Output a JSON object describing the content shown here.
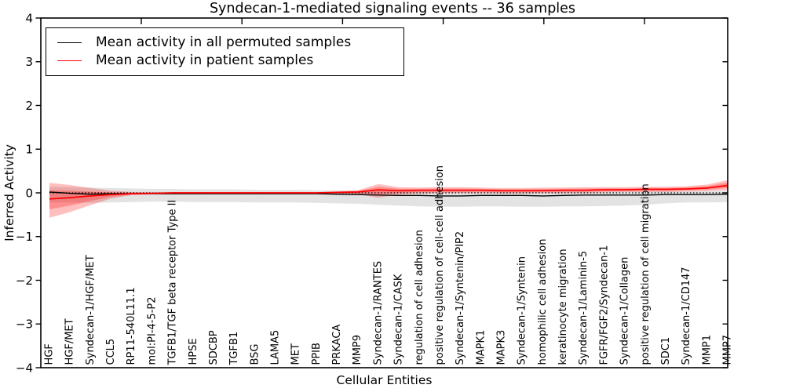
{
  "figure": {
    "window_title": "Syndecan-1-mediated signaling events -- 36 samples"
  },
  "legend": {
    "position": "upper left",
    "entries": [
      {
        "label": "Mean activity in all permuted samples",
        "color": "#000000"
      },
      {
        "label": "Mean activity in patient samples",
        "color": "#ff0000"
      }
    ]
  },
  "colors": {
    "background": "#ffffff",
    "frame": "#000000",
    "permuted_line": "#000000",
    "permuted_band": "#e3e3e3",
    "patient_line": "#ff0000",
    "patient_band": "rgba(255,0,0,0.25)"
  },
  "chart_data": {
    "type": "line",
    "title": "Syndecan-1-mediated signaling events -- 36 samples",
    "xlabel": "Cellular Entities",
    "ylabel": "Inferred Activity",
    "ylim": [
      -4,
      4
    ],
    "yticks": [
      4,
      3,
      2,
      1,
      0,
      -1,
      -2,
      -3,
      -4
    ],
    "grid": false,
    "legend_position": "upper left",
    "zero_reference_line": {
      "value": 0,
      "style": "dotted",
      "color": "#000000"
    },
    "sample_count": 36,
    "categories": [
      "HGF",
      "HGF/MET",
      "Syndecan-1/HGF/MET",
      "CCL5",
      "RP11-540L11.1",
      "mol:PI-4-5-P2",
      "TGFB1/TGF beta receptor Type II",
      "HPSE",
      "SDCBP",
      "TGFB1",
      "BSG",
      "LAMA5",
      "MET",
      "PPIB",
      "PRKACA",
      "MMP9",
      "Syndecan-1/RANTES",
      "Syndecan-1/CASK",
      "regulation of cell adhesion",
      "positive regulation of cell-cell adhesion",
      "Syndecan-1/Syntenin/PIP2",
      "MAPK1",
      "MAPK3",
      "Syndecan-1/Syntenin",
      "homophilic cell adhesion",
      "keratinocyte migration",
      "Syndecan-1/Laminin-5",
      "FGFR/FGF2/Syndecan-1",
      "Syndecan-1/Collagen",
      "positive regulation of cell migration",
      "SDC1",
      "Syndecan-1/CD147",
      "MMP1",
      "MMP7"
    ],
    "series": [
      {
        "name": "Mean activity in all permuted samples",
        "color": "#000000",
        "band_color": "#e3e3e3",
        "values": [
          0.02,
          -0.01,
          -0.03,
          -0.02,
          -0.02,
          -0.02,
          -0.02,
          -0.02,
          -0.02,
          -0.02,
          -0.02,
          -0.02,
          -0.02,
          -0.02,
          -0.03,
          -0.04,
          -0.05,
          -0.06,
          -0.06,
          -0.07,
          -0.07,
          -0.06,
          -0.06,
          -0.06,
          -0.07,
          -0.06,
          -0.05,
          -0.05,
          -0.05,
          -0.05,
          -0.04,
          -0.04,
          -0.04,
          -0.03
        ],
        "band_hi": [
          0.14,
          0.13,
          0.12,
          0.11,
          0.1,
          0.09,
          0.09,
          0.08,
          0.08,
          0.08,
          0.07,
          0.07,
          0.07,
          0.06,
          0.06,
          0.05,
          0.05,
          0.04,
          0.04,
          0.04,
          0.04,
          0.03,
          0.03,
          0.03,
          0.03,
          0.03,
          0.03,
          0.03,
          0.03,
          0.04,
          0.04,
          0.04,
          0.04,
          0.05
        ],
        "band_lo": [
          -0.22,
          -0.22,
          -0.23,
          -0.22,
          -0.21,
          -0.2,
          -0.2,
          -0.21,
          -0.21,
          -0.21,
          -0.22,
          -0.22,
          -0.22,
          -0.23,
          -0.24,
          -0.25,
          -0.27,
          -0.29,
          -0.31,
          -0.32,
          -0.32,
          -0.31,
          -0.31,
          -0.32,
          -0.32,
          -0.31,
          -0.31,
          -0.3,
          -0.29,
          -0.27,
          -0.24,
          -0.22,
          -0.22,
          -0.21
        ]
      },
      {
        "name": "Mean activity in patient samples",
        "color": "#ff0000",
        "band_color": "rgba(255,0,0,0.25)",
        "values": [
          -0.14,
          -0.11,
          -0.07,
          -0.04,
          -0.02,
          -0.01,
          0.0,
          0.0,
          0.0,
          0.0,
          0.0,
          0.0,
          0.0,
          0.0,
          0.01,
          0.02,
          0.07,
          0.05,
          0.06,
          0.06,
          0.06,
          0.06,
          0.05,
          0.05,
          0.05,
          0.06,
          0.06,
          0.07,
          0.07,
          0.08,
          0.08,
          0.09,
          0.11,
          0.17
        ],
        "band_hi": [
          0.23,
          0.18,
          0.11,
          0.05,
          0.02,
          0.01,
          0.01,
          0.01,
          0.01,
          0.01,
          0.01,
          0.01,
          0.01,
          0.01,
          0.03,
          0.06,
          0.2,
          0.13,
          0.12,
          0.13,
          0.13,
          0.12,
          0.11,
          0.11,
          0.12,
          0.12,
          0.13,
          0.13,
          0.13,
          0.14,
          0.14,
          0.15,
          0.19,
          0.29
        ],
        "band_lo": [
          -0.57,
          -0.44,
          -0.28,
          -0.13,
          -0.05,
          -0.03,
          -0.02,
          -0.02,
          -0.02,
          -0.02,
          -0.02,
          -0.02,
          -0.02,
          -0.02,
          -0.02,
          -0.03,
          -0.11,
          -0.04,
          -0.01,
          0.0,
          0.0,
          0.0,
          -0.01,
          -0.01,
          0.0,
          0.0,
          0.0,
          0.01,
          0.02,
          0.02,
          0.02,
          0.03,
          0.04,
          0.06
        ]
      }
    ]
  }
}
